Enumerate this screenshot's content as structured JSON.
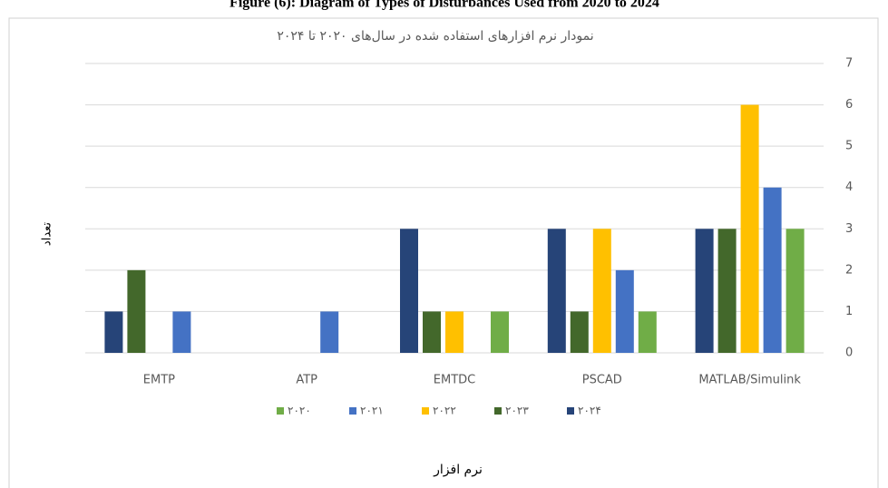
{
  "chart_data": {
    "type": "bar",
    "caption": "Figure (6): Diagram of Types of Disturbances Used from 2020 to 2024",
    "title": "نمودار نرم افزارهای استفاده شده در سال‌های ۲۰۲۰ تا ۲۰۲۴",
    "y_axis_label": "تعداد",
    "x_axis_label": "نرم افزار",
    "categories": [
      "EMTP",
      "ATP",
      "EMTDC",
      "PSCAD",
      "MATLAB/Simulink"
    ],
    "series": [
      {
        "name": "۲۰۲۰",
        "color": "#70ad47",
        "values": [
          0,
          0,
          1,
          1,
          3
        ]
      },
      {
        "name": "۲۰۲۱",
        "color": "#4472c4",
        "values": [
          1,
          1,
          0,
          2,
          4
        ]
      },
      {
        "name": "۲۰۲۲",
        "color": "#ffc000",
        "values": [
          0,
          0,
          1,
          3,
          6
        ]
      },
      {
        "name": "۲۰۲۳",
        "color": "#43682b",
        "values": [
          2,
          0,
          1,
          1,
          3
        ]
      },
      {
        "name": "۲۰۲۴",
        "color": "#264478",
        "values": [
          1,
          0,
          3,
          3,
          3
        ]
      }
    ],
    "ylim": [
      0,
      7
    ],
    "yticks": [
      0,
      1,
      2,
      3,
      4,
      5,
      6,
      7
    ],
    "y_axis_side": "right",
    "grid": true,
    "legend": "bottom"
  }
}
